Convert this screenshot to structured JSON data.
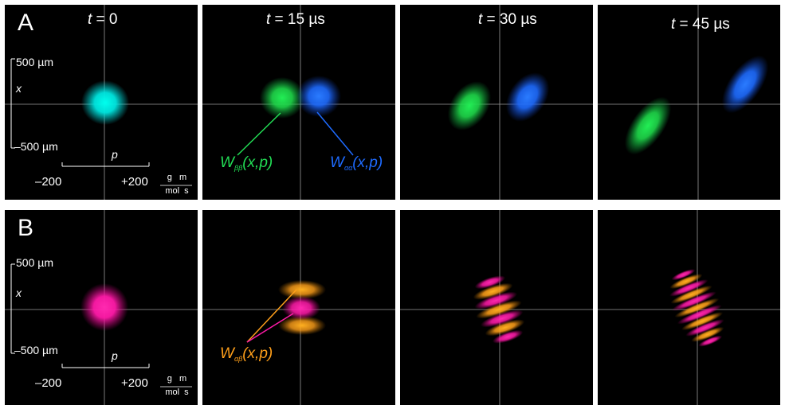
{
  "row_a": {
    "label": "A",
    "times": [
      {
        "t": "t",
        "eq": " = 0"
      },
      {
        "t": "t",
        "eq": " = 15 µs"
      },
      {
        "t": "t",
        "eq": " = 30 µs"
      },
      {
        "t": "t",
        "eq": " = 45 µs"
      }
    ],
    "x_axis": {
      "top": "500 µm",
      "bottom": "–500 µm",
      "symbol": "x"
    },
    "p_axis": {
      "symbol": "p",
      "left": "–200",
      "right": "+200",
      "unit_num": "g   m",
      "unit_den": "mol  s"
    },
    "labels": {
      "w_bb": {
        "main": "W",
        "sub": "ββ",
        "arg": "(x,p)",
        "color": "#22dd55"
      },
      "w_aa": {
        "main": "W",
        "sub": "αα",
        "arg": "(x,p)",
        "color": "#1e6bff"
      }
    }
  },
  "row_b": {
    "label": "B",
    "x_axis": {
      "top": "500 µm",
      "bottom": "–500 µm",
      "symbol": "x"
    },
    "p_axis": {
      "symbol": "p",
      "left": "–200",
      "right": "+200",
      "unit_num": "g   m",
      "unit_den": "mol  s"
    },
    "labels": {
      "w_ab": {
        "main": "W",
        "sub": "αβ",
        "arg": "(x,p)",
        "color": "#ff9f1a"
      }
    }
  },
  "colors": {
    "cyan": "#00ffee",
    "green": "#1fdc4a",
    "blue": "#1e6bff",
    "magenta": "#ff1aa8",
    "orange": "#ffa41a",
    "crosshair": "#9a9a9a"
  }
}
